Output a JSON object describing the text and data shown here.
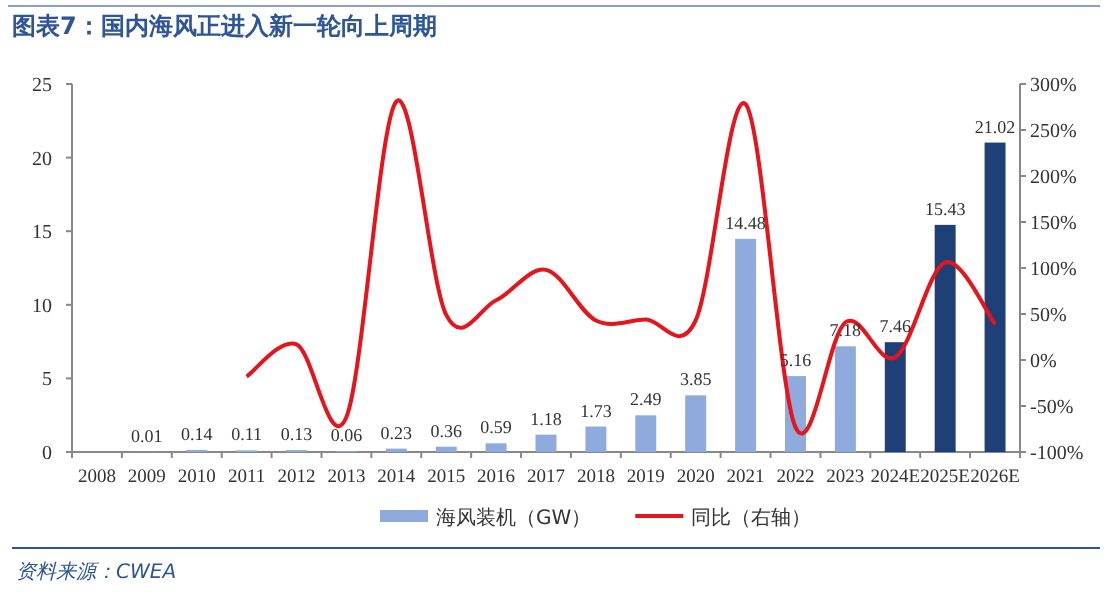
{
  "chart_data": {
    "type": "bar",
    "title": "图表7：国内海风正进入新一轮向上周期",
    "categories": [
      "2008",
      "2009",
      "2010",
      "2011",
      "2012",
      "2013",
      "2014",
      "2015",
      "2016",
      "2017",
      "2018",
      "2019",
      "2020",
      "2021",
      "2022",
      "2023",
      "2024E",
      "2025E",
      "2026E"
    ],
    "series": [
      {
        "name": "海风装机（GW）",
        "colors": [
          "#8faadc",
          "#8faadc",
          "#8faadc",
          "#8faadc",
          "#8faadc",
          "#8faadc",
          "#8faadc",
          "#8faadc",
          "#8faadc",
          "#8faadc",
          "#8faadc",
          "#8faadc",
          "#8faadc",
          "#8faadc",
          "#8faadc",
          "#8faadc",
          "#1f3f77",
          "#1f3f77",
          "#1f3f77"
        ],
        "values": [
          null,
          0.01,
          0.14,
          0.11,
          0.13,
          0.06,
          0.23,
          0.36,
          0.59,
          1.18,
          1.73,
          2.49,
          3.85,
          14.48,
          5.16,
          7.18,
          7.46,
          15.43,
          21.02
        ],
        "value_labels": [
          null,
          "0.01",
          "0.14",
          "0.11",
          "0.13",
          "0.06",
          "0.23",
          "0.36",
          "0.59",
          "1.18",
          "1.73",
          "2.49",
          "3.85",
          "14.48",
          "5.16",
          "7.18",
          "7.46",
          "15.43",
          "21.02"
        ]
      },
      {
        "name": "同比（右轴）",
        "type": "line",
        "axis": "y2",
        "color": "#e8141c",
        "values": [
          null,
          null,
          null,
          -18,
          17,
          -62,
          281,
          49,
          65,
          98,
          43,
          44,
          43,
          278,
          -73,
          41,
          3,
          106,
          39
        ]
      }
    ],
    "ylim": [
      0,
      25
    ],
    "yticks": [
      0,
      5,
      10,
      15,
      20,
      25
    ],
    "y2lim": [
      -100,
      300
    ],
    "y2ticks": [
      {
        "value": -100,
        "label": "-100%"
      },
      {
        "value": -50,
        "label": "-50%"
      },
      {
        "value": 0,
        "label": "0%"
      },
      {
        "value": 50,
        "label": "50%"
      },
      {
        "value": 100,
        "label": "100%"
      },
      {
        "value": 150,
        "label": "150%"
      },
      {
        "value": 200,
        "label": "200%"
      },
      {
        "value": 250,
        "label": "250%"
      },
      {
        "value": 300,
        "label": "300%"
      }
    ],
    "legend": "bottom",
    "grid": false,
    "marker": "none",
    "annotations": [
      "资料来源：CWEA"
    ]
  }
}
